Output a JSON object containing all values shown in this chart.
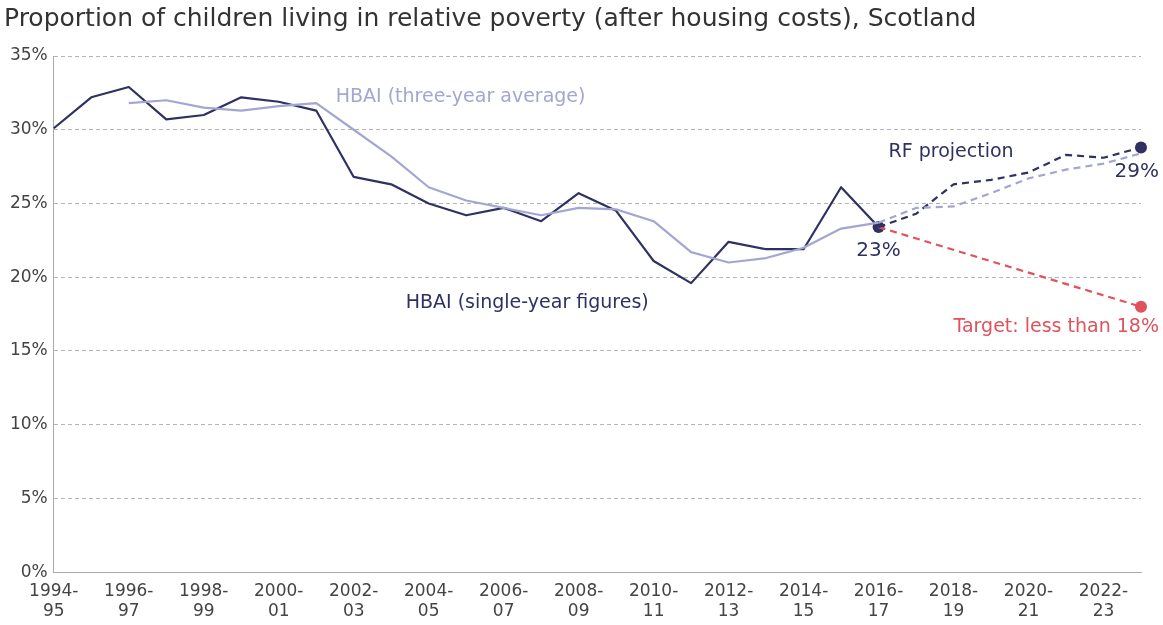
{
  "chart_data": {
    "type": "line",
    "title": "Proportion of children living in relative poverty (after housing costs), Scotland",
    "categories": [
      "1994-95",
      null,
      "1996-97",
      null,
      "1998-99",
      null,
      "2000-01",
      null,
      "2002-03",
      null,
      "2004-05",
      null,
      "2006-07",
      null,
      "2008-09",
      null,
      "2010-11",
      null,
      "2012-13",
      null,
      "2014-15",
      null,
      "2016-17",
      null,
      "2018-19",
      null,
      "2020-21",
      null,
      "2022-23",
      null
    ],
    "series": [
      {
        "name": "HBAI (three-year average)",
        "color": "#a4a6d2",
        "line_style": "solid",
        "values": [
          null,
          null,
          31.8,
          32.0,
          31.5,
          31.3,
          31.6,
          31.8,
          30.0,
          28.2,
          26.1,
          25.2,
          24.7,
          24.2,
          24.7,
          24.6,
          23.8,
          21.7,
          21.0,
          21.3,
          22.0,
          23.3,
          23.7,
          null,
          null,
          null,
          null,
          null,
          null,
          null
        ]
      },
      {
        "color": "#a4a6d2",
        "line_style": "dashed",
        "values": [
          null,
          null,
          null,
          null,
          null,
          null,
          null,
          null,
          null,
          null,
          null,
          null,
          null,
          null,
          null,
          null,
          null,
          null,
          null,
          null,
          null,
          null,
          23.7,
          24.7,
          24.8,
          25.7,
          26.7,
          27.3,
          27.7,
          28.4
        ]
      },
      {
        "name": "HBAI (single-year figures)",
        "color": "#2e3162",
        "line_style": "solid",
        "values": [
          30.1,
          32.2,
          32.9,
          30.7,
          31.0,
          32.2,
          31.9,
          31.3,
          26.8,
          26.3,
          25.0,
          24.2,
          24.7,
          23.8,
          25.7,
          24.5,
          21.1,
          19.6,
          22.4,
          21.9,
          21.9,
          26.1,
          23.4,
          null,
          null,
          null,
          null,
          null,
          null,
          null
        ]
      },
      {
        "name": "RF projection",
        "color": "#2e3162",
        "line_style": "dashed",
        "values": [
          null,
          null,
          null,
          null,
          null,
          null,
          null,
          null,
          null,
          null,
          null,
          null,
          null,
          null,
          null,
          null,
          null,
          null,
          null,
          null,
          null,
          null,
          23.4,
          24.3,
          26.3,
          26.6,
          27.1,
          28.3,
          28.1,
          28.8
        ]
      },
      {
        "name": "Target: less than 18%",
        "color": "#e0525c",
        "line_style": "dashed",
        "values": [
          null,
          null,
          null,
          null,
          null,
          null,
          null,
          null,
          null,
          null,
          null,
          null,
          null,
          null,
          null,
          null,
          null,
          null,
          null,
          null,
          null,
          null,
          23.4,
          null,
          null,
          null,
          null,
          null,
          null,
          18.0
        ]
      },
      {
        "type": "scatter",
        "color": "#2e3162",
        "marker": "circle",
        "values": [
          null,
          null,
          null,
          null,
          null,
          null,
          null,
          null,
          null,
          null,
          null,
          null,
          null,
          null,
          null,
          null,
          null,
          null,
          null,
          null,
          null,
          null,
          23.4,
          null,
          null,
          null,
          null,
          null,
          null,
          null
        ],
        "value_labels": [
          null,
          null,
          null,
          null,
          null,
          null,
          null,
          null,
          null,
          null,
          null,
          null,
          null,
          null,
          null,
          null,
          null,
          null,
          null,
          null,
          null,
          null,
          "23%",
          null,
          null,
          null,
          null,
          null,
          null,
          null
        ]
      },
      {
        "type": "scatter",
        "color": "#2e3162",
        "marker": "circle",
        "values": [
          null,
          null,
          null,
          null,
          null,
          null,
          null,
          null,
          null,
          null,
          null,
          null,
          null,
          null,
          null,
          null,
          null,
          null,
          null,
          null,
          null,
          null,
          null,
          null,
          null,
          null,
          null,
          null,
          null,
          28.8
        ],
        "value_labels": [
          null,
          null,
          null,
          null,
          null,
          null,
          null,
          null,
          null,
          null,
          null,
          null,
          null,
          null,
          null,
          null,
          null,
          null,
          null,
          null,
          null,
          null,
          null,
          null,
          null,
          null,
          null,
          null,
          null,
          "29%"
        ]
      },
      {
        "type": "scatter",
        "color": "#e0525c",
        "marker": "circle",
        "values": [
          null,
          null,
          null,
          null,
          null,
          null,
          null,
          null,
          null,
          null,
          null,
          null,
          null,
          null,
          null,
          null,
          null,
          null,
          null,
          null,
          null,
          null,
          null,
          null,
          null,
          null,
          null,
          null,
          null,
          18.0
        ]
      }
    ],
    "ylim": [
      0,
      35
    ],
    "yticks": [
      {
        "value": 0,
        "label": "0%"
      },
      {
        "value": 5,
        "label": "5%"
      },
      {
        "value": 10,
        "label": "10%"
      },
      {
        "value": 15,
        "label": "15%"
      },
      {
        "value": 20,
        "label": "20%"
      },
      {
        "value": 25,
        "label": "25%"
      },
      {
        "value": 30,
        "label": "30%"
      },
      {
        "value": 35,
        "label": "35%"
      }
    ],
    "grid": "y",
    "legend": false
  }
}
